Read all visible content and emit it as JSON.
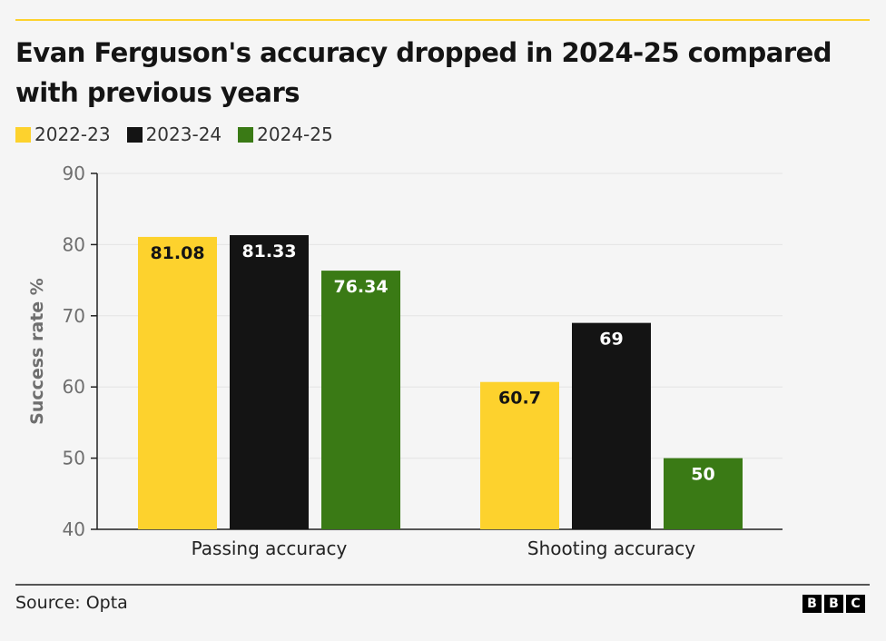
{
  "title": "Evan Ferguson's accuracy dropped in 2024-25 compared with previous years",
  "source": "Source: Opta",
  "logo_text": "BBC",
  "chart_data": {
    "type": "bar",
    "categories": [
      "Passing accuracy",
      "Shooting accuracy"
    ],
    "series": [
      {
        "name": "2022-23",
        "color": "#fdd22d",
        "label_color": "#141414",
        "values": [
          81.08,
          60.7
        ],
        "labels": [
          "81.08",
          "60.7"
        ]
      },
      {
        "name": "2023-24",
        "color": "#141414",
        "label_color": "#ffffff",
        "values": [
          81.33,
          69
        ],
        "labels": [
          "81.33",
          "69"
        ]
      },
      {
        "name": "2024-25",
        "color": "#3a7a15",
        "label_color": "#ffffff",
        "values": [
          76.34,
          50
        ],
        "labels": [
          "76.34",
          "50"
        ]
      }
    ],
    "ylabel": "Success rate %",
    "ylim": [
      40,
      90
    ],
    "yticks": [
      "40",
      "50",
      "60",
      "70",
      "80",
      "90"
    ],
    "grid": true,
    "legend": "top-left"
  }
}
